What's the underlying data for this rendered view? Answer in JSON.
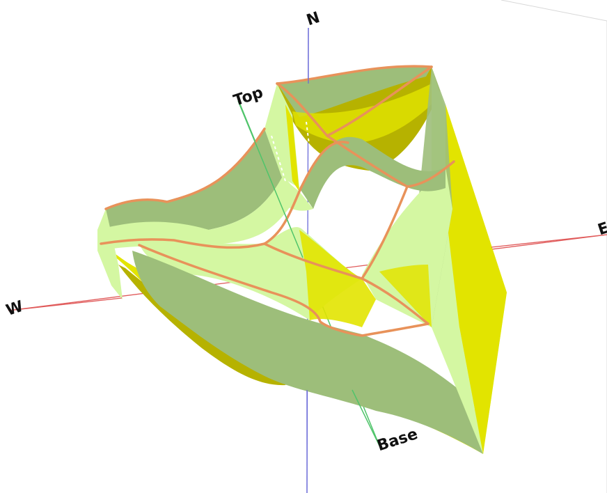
{
  "viewer": {
    "axes": {
      "north_label": "N",
      "west_label": "W",
      "east_label": "E",
      "top_label": "Top",
      "base_label": "Base"
    },
    "colors": {
      "background": "#ffffff",
      "ns_axis": "#6a6ad8",
      "ew_axis": "#e05a5a",
      "vertical_axis": "#4fc46a",
      "surface_light": "#d4f7a2",
      "surface_mid": "#9dbe7a",
      "surface_yellow": "#e2e400",
      "surface_dark_yellow": "#b6b200",
      "edge_orange": "#e8925a"
    }
  }
}
